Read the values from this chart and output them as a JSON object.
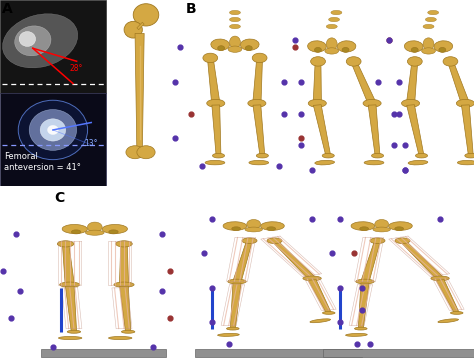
{
  "background_color": "#ffffff",
  "panel_A_label": "A",
  "panel_B_label": "B",
  "panel_C_label": "C",
  "panel_A_bg": "#000000",
  "panel_A_text": "Femoral\nanteversion = 41°",
  "panel_A_angle1": "28°",
  "panel_A_angle2": "13°",
  "figure_width": 4.74,
  "figure_height": 3.64,
  "dpi": 100,
  "bone_color": "#D4A843",
  "bone_edge": "#a07820",
  "muscle_color": "#E8B4A0",
  "muscle_edge": "#c09080",
  "dark_gray": "#808080",
  "platform_color": "#909090",
  "platform_edge": "#666666",
  "blue_line": "#2244CC",
  "dot_purple": "#5533AA",
  "dot_red": "#993333",
  "label_fontsize": 10,
  "label_fontweight": "bold",
  "annotation_fontsize": 5.5
}
